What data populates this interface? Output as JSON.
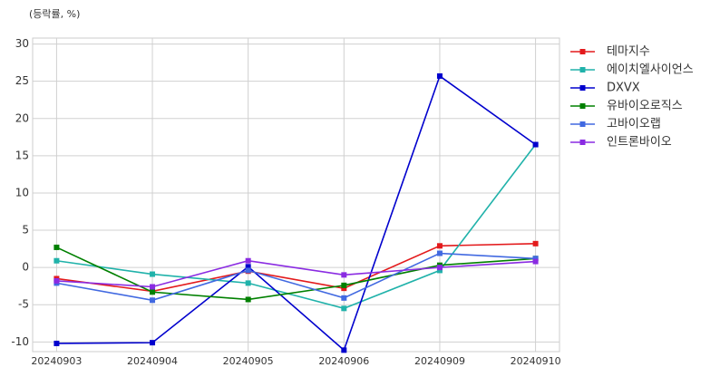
{
  "chart_data": {
    "type": "line",
    "y_label": "(등락률, %)",
    "categories": [
      "20240903",
      "20240904",
      "20240905",
      "20240906",
      "20240909",
      "20240910"
    ],
    "series": [
      {
        "name": "테마지수",
        "color": "#e31a1c",
        "values": [
          -1.5,
          -3.2,
          -0.5,
          -2.8,
          2.9,
          3.2
        ]
      },
      {
        "name": "에이치엘사이언스",
        "color": "#20b2aa",
        "values": [
          0.9,
          -0.9,
          -2.1,
          -5.5,
          -0.4,
          16.5
        ]
      },
      {
        "name": "DXVX",
        "color": "#0000cd",
        "values": [
          -10.2,
          -10.1,
          0.1,
          -11.1,
          25.7,
          16.5
        ]
      },
      {
        "name": "유바이오로직스",
        "color": "#008000",
        "values": [
          2.7,
          -3.3,
          -4.3,
          -2.4,
          0.3,
          1.2
        ]
      },
      {
        "name": "고바이오랩",
        "color": "#4169e1",
        "values": [
          -2.1,
          -4.4,
          -0.4,
          -4.1,
          1.9,
          1.2
        ]
      },
      {
        "name": "인트론바이오",
        "color": "#8a2be2",
        "values": [
          -1.8,
          -2.6,
          0.9,
          -1.0,
          0.0,
          0.8
        ]
      }
    ],
    "ylim": [
      -11.3,
      30.8
    ],
    "yticks": [
      -10,
      -5,
      0,
      5,
      10,
      15,
      20,
      25,
      30
    ],
    "grid": true,
    "legend": "right"
  }
}
